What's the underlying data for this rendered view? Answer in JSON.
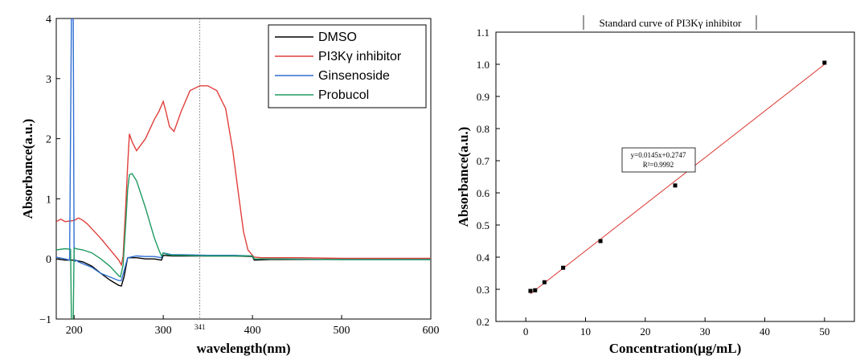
{
  "chart_data": [
    {
      "type": "line",
      "title": "",
      "xlabel": "wavelength(nm)",
      "ylabel": "Absorbance(a.u.)",
      "xlim": [
        180,
        600
      ],
      "ylim": [
        -1,
        4
      ],
      "xticks": [
        200,
        300,
        400,
        500,
        600
      ],
      "yticks": [
        -1,
        0,
        1,
        2,
        3,
        4
      ],
      "vline": {
        "x": 341,
        "label": "341",
        "style": "dotted"
      },
      "legend_position": "top-right",
      "series": [
        {
          "name": "DMSO",
          "color": "#000000",
          "x": [
            180,
            190,
            200,
            210,
            220,
            230,
            240,
            250,
            253,
            256,
            260,
            270,
            280,
            290,
            298,
            300,
            310,
            320,
            350,
            380,
            400,
            402,
            420,
            500,
            600
          ],
          "y": [
            0.0,
            -0.02,
            -0.02,
            -0.05,
            -0.12,
            -0.24,
            -0.35,
            -0.44,
            -0.45,
            -0.3,
            0.02,
            0.02,
            0.0,
            0.0,
            -0.02,
            0.06,
            0.05,
            0.05,
            0.05,
            0.05,
            0.04,
            -0.02,
            -0.01,
            -0.01,
            -0.01
          ]
        },
        {
          "name": "PI3Kγ inhibitor",
          "color": "#e0403c",
          "x": [
            180,
            185,
            190,
            200,
            205,
            210,
            215,
            220,
            230,
            240,
            250,
            253,
            255,
            258,
            260,
            262,
            265,
            270,
            280,
            290,
            295,
            300,
            303,
            307,
            312,
            320,
            330,
            341,
            350,
            360,
            370,
            378,
            385,
            390,
            395,
            400,
            402,
            410,
            420,
            450,
            500,
            600
          ],
          "y": [
            0.62,
            0.66,
            0.62,
            0.64,
            0.68,
            0.64,
            0.58,
            0.5,
            0.34,
            0.16,
            -0.02,
            -0.1,
            0.05,
            0.9,
            1.55,
            2.08,
            1.95,
            1.8,
            2.0,
            2.32,
            2.45,
            2.62,
            2.45,
            2.2,
            2.12,
            2.45,
            2.8,
            2.88,
            2.88,
            2.8,
            2.5,
            1.8,
            1.0,
            0.45,
            0.15,
            0.06,
            0.03,
            0.02,
            0.02,
            0.02,
            0.01,
            0.01
          ]
        },
        {
          "name": "Ginsenoside",
          "color": "#2f6fd1",
          "x": [
            180,
            190,
            195,
            197,
            198,
            199,
            200,
            201,
            202,
            205,
            210,
            220,
            230,
            240,
            250,
            253,
            256,
            260,
            270,
            280,
            290,
            298,
            300,
            310,
            320,
            350,
            380,
            400,
            402,
            420,
            500,
            600
          ],
          "y": [
            0.03,
            0.0,
            -0.02,
            4.1,
            4.1,
            4.1,
            -0.02,
            -0.04,
            -0.02,
            -0.05,
            -0.08,
            -0.14,
            -0.24,
            -0.3,
            -0.36,
            -0.36,
            -0.2,
            0.02,
            0.05,
            0.04,
            0.04,
            0.02,
            0.1,
            0.07,
            0.07,
            0.06,
            0.06,
            0.05,
            0.0,
            0.0,
            -0.01,
            -0.01
          ]
        },
        {
          "name": "Probucol",
          "color": "#1f9a60",
          "x": [
            180,
            190,
            196,
            197,
            198,
            199,
            200,
            201,
            202,
            210,
            220,
            230,
            240,
            250,
            252,
            255,
            258,
            260,
            262,
            265,
            270,
            280,
            290,
            295,
            298,
            300,
            305,
            310,
            320,
            350,
            380,
            400,
            402,
            420,
            500,
            600
          ],
          "y": [
            0.15,
            0.17,
            0.16,
            -1.05,
            -1.05,
            -1.05,
            0.17,
            0.18,
            0.17,
            0.15,
            0.1,
            0.0,
            -0.12,
            -0.28,
            -0.3,
            -0.1,
            0.6,
            1.15,
            1.4,
            1.42,
            1.3,
            0.85,
            0.35,
            0.15,
            0.05,
            0.1,
            0.07,
            0.06,
            0.06,
            0.05,
            0.05,
            0.05,
            0.0,
            0.0,
            -0.01,
            -0.01
          ]
        }
      ]
    },
    {
      "type": "scatter",
      "title": "Standard curve of PI3Kγ inhibitor",
      "xlabel": "Concentration(μg/mL)",
      "ylabel": "Absorbance(a.u.)",
      "xlim": [
        -5,
        55
      ],
      "ylim": [
        0.2,
        1.1
      ],
      "xticks": [
        0,
        10,
        20,
        30,
        40,
        50
      ],
      "yticks": [
        0.2,
        0.3,
        0.4,
        0.5,
        0.6,
        0.7,
        0.8,
        0.9,
        1.0,
        1.1
      ],
      "x": [
        0.78,
        1.56,
        3.125,
        6.25,
        12.5,
        25,
        50
      ],
      "y": [
        0.295,
        0.297,
        0.322,
        0.367,
        0.45,
        0.623,
        1.005
      ],
      "fit": {
        "slope": 0.0145,
        "intercept": 0.2747,
        "color": "#d9342f"
      },
      "annotation_lines": [
        "y=0.0145x+0.2747",
        "R²=0.9992"
      ]
    }
  ]
}
